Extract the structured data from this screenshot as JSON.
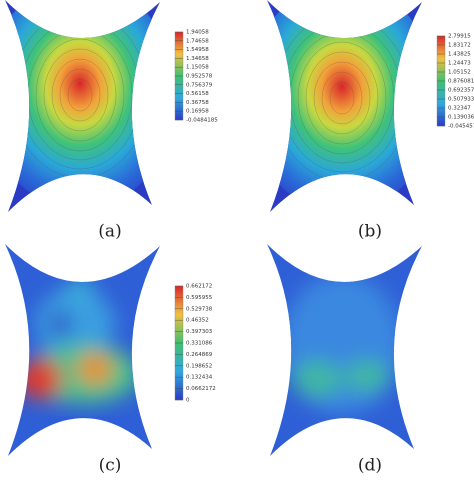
{
  "panels": [
    {
      "caption": "(a)",
      "colorbar": [
        "1.94058",
        "1.74658",
        "1.54958",
        "1.34658",
        "1.15058",
        "0.952578",
        "0.756379",
        "0.56158",
        "0.36758",
        "0.16958",
        "-0.0484185"
      ]
    },
    {
      "caption": "(b)",
      "colorbar": [
        "2.79915",
        "1.83172",
        "1.43825",
        "1.24473",
        "1.05152",
        "0.876081",
        "0.692357",
        "0.507933",
        "0.32347",
        "0.139036",
        "-0.0454579"
      ]
    },
    {
      "caption": "(c)",
      "colorbar": [
        "0.662172",
        "0.595955",
        "0.529738",
        "0.46352",
        "0.397303",
        "0.331086",
        "0.264869",
        "0.198652",
        "0.132434",
        "0.0662172",
        "0"
      ]
    },
    {
      "caption": "(d)"
    }
  ]
}
